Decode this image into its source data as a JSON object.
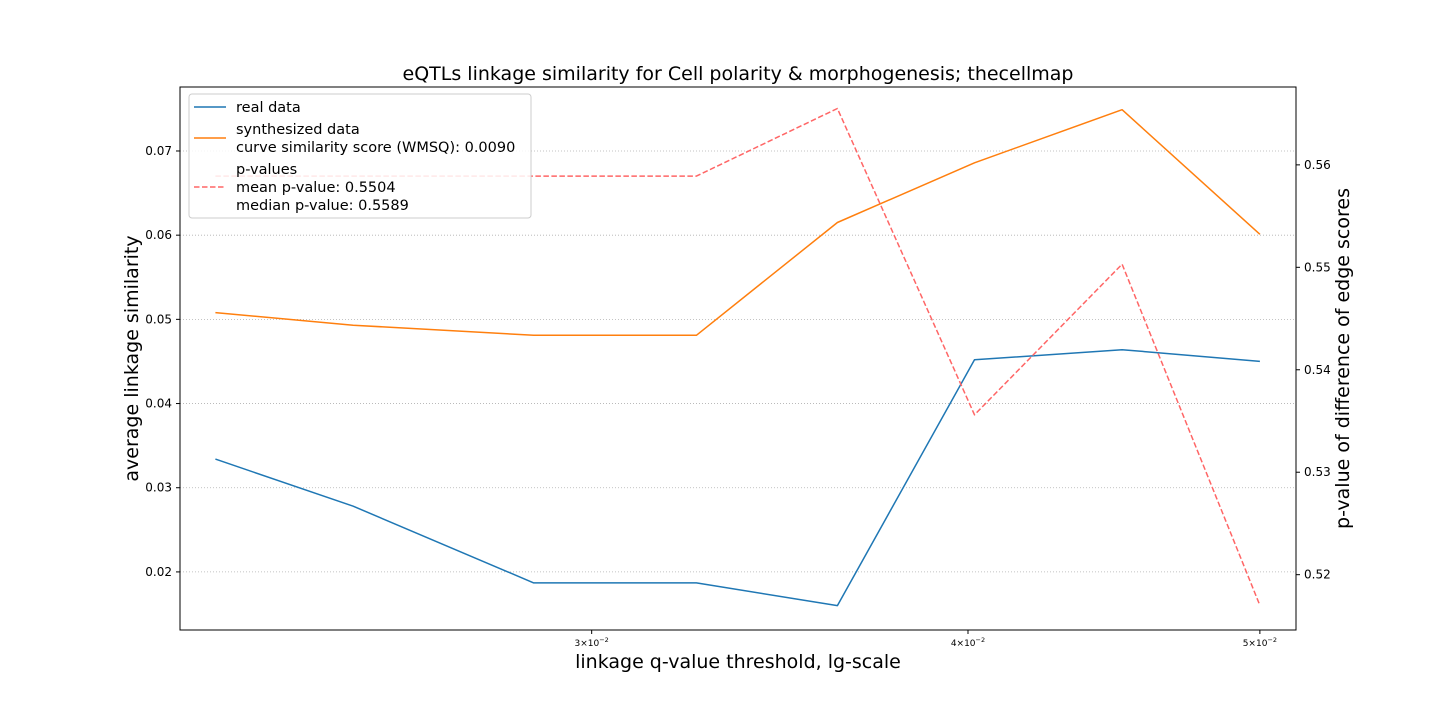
{
  "chart_data": {
    "type": "line",
    "title": "eQTLs linkage similarity for Cell polarity & morphogenesis; thecellmap",
    "xlabel": "linkage q-value threshold, lg-scale",
    "ylabel_left": "average linkage similarity",
    "ylabel_right": "p-value of difference of edge scores",
    "x_scale": "log",
    "x": [
      0.0225,
      0.025,
      0.0287,
      0.0325,
      0.0362,
      0.0402,
      0.045,
      0.05
    ],
    "xlim": [
      0.0219,
      0.0514
    ],
    "x_ticks": [
      {
        "value": 0.03,
        "label_base": "3×10",
        "label_exp": "−2"
      },
      {
        "value": 0.04,
        "label_base": "4×10",
        "label_exp": "−2"
      },
      {
        "value": 0.05,
        "label_base": "5×10",
        "label_exp": "−2"
      }
    ],
    "ylim_left": [
      0.0131,
      0.0776
    ],
    "yticks_left": [
      "0.02",
      "0.03",
      "0.04",
      "0.05",
      "0.06",
      "0.07"
    ],
    "ylim_right": [
      0.5146,
      0.5676
    ],
    "yticks_right": [
      "0.52",
      "0.53",
      "0.54",
      "0.55",
      "0.56"
    ],
    "grid": "horizontal-dotted",
    "legend_position": "top-left",
    "series": [
      {
        "name": "real data",
        "axis": "left",
        "color": "#1f77b4",
        "style": "solid",
        "values": [
          0.0334,
          0.0278,
          0.0187,
          0.0187,
          0.016,
          0.0452,
          0.0464,
          0.045
        ]
      },
      {
        "name": "synthesized data",
        "axis": "left",
        "color": "#ff7f0e",
        "style": "solid",
        "values": [
          0.0508,
          0.0493,
          0.0481,
          0.0481,
          0.0615,
          0.0686,
          0.0749,
          0.0601
        ]
      },
      {
        "name": "p-values",
        "axis": "right",
        "color": "#ff6666",
        "style": "dashed",
        "values": [
          0.5589,
          0.5589,
          0.5589,
          0.5589,
          0.5655,
          0.5356,
          0.5503,
          0.517
        ]
      }
    ]
  },
  "legend": {
    "entries": [
      {
        "lines": [
          "real data"
        ],
        "color": "#1f77b4",
        "style": "solid"
      },
      {
        "lines": [
          "synthesized data",
          "curve similarity score (WMSQ): 0.0090"
        ],
        "color": "#ff7f0e",
        "style": "solid"
      },
      {
        "lines": [
          "p-values",
          "mean p-value: 0.5504",
          "median p-value: 0.5589"
        ],
        "color": "#ff6666",
        "style": "dashed"
      }
    ]
  }
}
